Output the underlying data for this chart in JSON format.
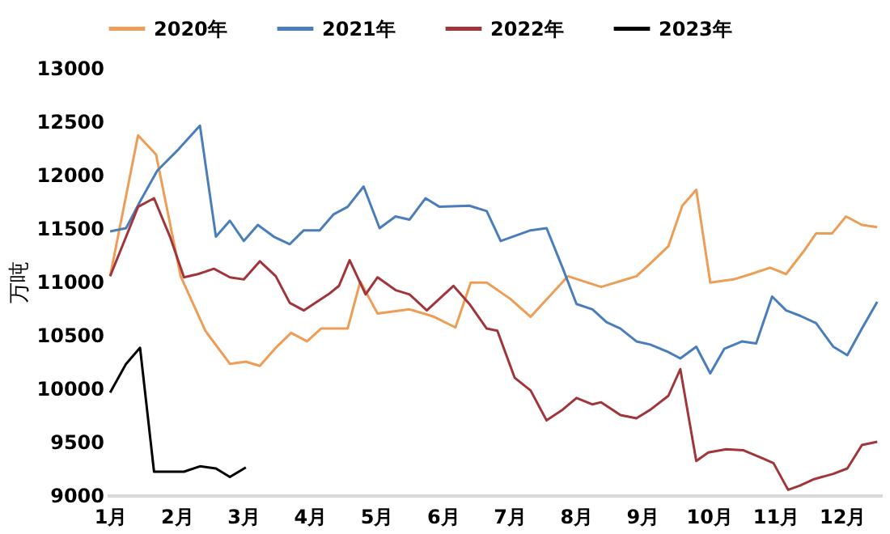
{
  "chart_data": {
    "type": "line",
    "ylabel": "万吨",
    "ylim": [
      9000,
      13000
    ],
    "yticks": [
      9000,
      9500,
      10000,
      10500,
      11000,
      11500,
      12000,
      12500,
      13000
    ],
    "xlim": [
      0.95,
      12.6
    ],
    "xticks": [
      {
        "value": 1,
        "label": "1月"
      },
      {
        "value": 2,
        "label": "2月"
      },
      {
        "value": 3,
        "label": "3月"
      },
      {
        "value": 4,
        "label": "4月"
      },
      {
        "value": 5,
        "label": "5月"
      },
      {
        "value": 6,
        "label": "6月"
      },
      {
        "value": 7,
        "label": "7月"
      },
      {
        "value": 8,
        "label": "8月"
      },
      {
        "value": 9,
        "label": "9月"
      },
      {
        "value": 10,
        "label": "10月"
      },
      {
        "value": 11,
        "label": "11月"
      },
      {
        "value": 12,
        "label": "12月"
      }
    ],
    "grid": false,
    "legend": "top",
    "marker": "none",
    "line_style": "solid",
    "series": [
      {
        "name": "2020年",
        "color": "#ed9d55",
        "x": [
          1.0,
          1.42,
          1.69,
          2.06,
          2.43,
          2.8,
          3.04,
          3.25,
          3.49,
          3.72,
          3.96,
          4.17,
          4.57,
          4.76,
          5.02,
          5.5,
          5.87,
          6.19,
          6.42,
          6.66,
          7.01,
          7.32,
          7.88,
          8.38,
          8.91,
          9.12,
          9.39,
          9.6,
          9.81,
          10.02,
          10.37,
          10.63,
          10.92,
          11.16,
          11.42,
          11.61,
          11.85,
          12.06,
          12.3,
          12.53
        ],
        "values": [
          11050,
          12370,
          12190,
          11050,
          10540,
          10230,
          10250,
          10210,
          10380,
          10520,
          10440,
          10560,
          10560,
          11000,
          10700,
          10740,
          10670,
          10570,
          10990,
          10990,
          10840,
          10670,
          11050,
          10950,
          11050,
          11170,
          11330,
          11710,
          11860,
          10990,
          11020,
          11070,
          11130,
          11070,
          11280,
          11450,
          11450,
          11610,
          11530,
          11510
        ]
      },
      {
        "name": "2021年",
        "color": "#4a7ebb",
        "x": [
          1.0,
          1.24,
          1.45,
          1.71,
          2.03,
          2.35,
          2.59,
          2.8,
          3.01,
          3.22,
          3.46,
          3.7,
          3.91,
          4.15,
          4.36,
          4.57,
          4.81,
          5.05,
          5.29,
          5.5,
          5.74,
          5.95,
          6.4,
          6.66,
          6.87,
          7.32,
          7.56,
          7.8,
          8.01,
          8.25,
          8.46,
          8.67,
          8.91,
          9.12,
          9.39,
          9.57,
          9.81,
          10.02,
          10.23,
          10.5,
          10.71,
          10.95,
          11.16,
          11.37,
          11.61,
          11.87,
          12.08,
          12.3,
          12.53
        ],
        "values": [
          11470,
          11500,
          11750,
          12040,
          12240,
          12460,
          11420,
          11570,
          11380,
          11530,
          11420,
          11350,
          11480,
          11480,
          11630,
          11700,
          11890,
          11500,
          11610,
          11580,
          11780,
          11700,
          11710,
          11660,
          11380,
          11480,
          11500,
          11130,
          10790,
          10740,
          10620,
          10560,
          10440,
          10410,
          10340,
          10280,
          10390,
          10140,
          10370,
          10440,
          10420,
          10860,
          10730,
          10680,
          10610,
          10390,
          10310,
          10560,
          10810
        ]
      },
      {
        "name": "2022年",
        "color": "#a0353a",
        "x": [
          1.0,
          1.24,
          1.42,
          1.66,
          1.9,
          2.11,
          2.32,
          2.56,
          2.8,
          3.01,
          3.25,
          3.49,
          3.7,
          3.91,
          4.28,
          4.44,
          4.6,
          4.84,
          5.02,
          5.29,
          5.5,
          5.76,
          6.16,
          6.4,
          6.66,
          6.82,
          7.08,
          7.32,
          7.56,
          7.8,
          8.01,
          8.25,
          8.38,
          8.67,
          8.91,
          9.12,
          9.39,
          9.57,
          9.81,
          9.99,
          10.26,
          10.52,
          10.79,
          10.97,
          11.19,
          11.37,
          11.58,
          11.87,
          12.08,
          12.3,
          12.53
        ],
        "values": [
          11050,
          11420,
          11700,
          11780,
          11420,
          11040,
          11070,
          11120,
          11040,
          11020,
          11190,
          11050,
          10800,
          10730,
          10880,
          10960,
          11200,
          10880,
          11040,
          10920,
          10880,
          10730,
          10960,
          10790,
          10560,
          10540,
          10100,
          9980,
          9700,
          9800,
          9910,
          9850,
          9870,
          9750,
          9720,
          9800,
          9930,
          10180,
          9320,
          9400,
          9430,
          9420,
          9350,
          9300,
          9050,
          9090,
          9150,
          9200,
          9250,
          9470,
          9500
        ]
      },
      {
        "name": "2023年",
        "color": "#000000",
        "x": [
          1.0,
          1.24,
          1.45,
          1.66,
          2.11,
          2.35,
          2.59,
          2.8,
          3.04
        ],
        "values": [
          9960,
          10230,
          10380,
          9220,
          9220,
          9270,
          9250,
          9170,
          9260
        ]
      }
    ]
  }
}
